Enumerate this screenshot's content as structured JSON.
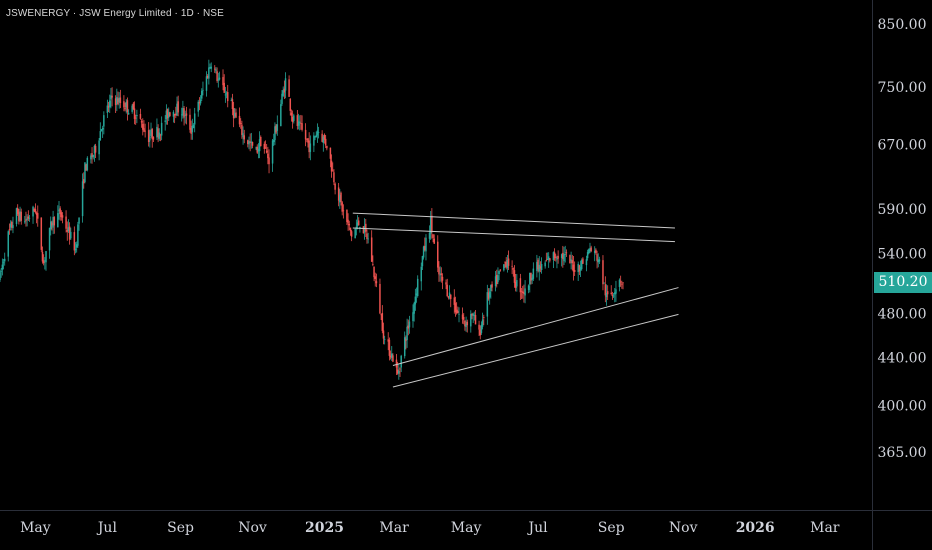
{
  "header": {
    "title": "JSWENERGY · JSW Energy Limited · 1D · NSE"
  },
  "chart_data": {
    "type": "candlestick",
    "symbol": "JSWENERGY",
    "exchange": "NSE",
    "interval": "1D",
    "y_scale": "log",
    "ylim": [
      340,
      870
    ],
    "y_ticks": [
      "850.00",
      "750.00",
      "670.00",
      "590.00",
      "540.00",
      "480.00",
      "440.00",
      "400.00",
      "365.00"
    ],
    "y_tick_values": [
      850,
      750,
      670,
      590,
      540,
      480,
      440,
      400,
      365
    ],
    "x_ticks": [
      "May",
      "Jul",
      "Sep",
      "Nov",
      "2025",
      "Mar",
      "May",
      "Jul",
      "Sep",
      "Nov",
      "2026",
      "Mar"
    ],
    "x_tick_dates": [
      "2024-05-01",
      "2024-07-01",
      "2024-09-01",
      "2024-11-01",
      "2025-01-01",
      "2025-03-01",
      "2025-05-01",
      "2025-07-01",
      "2025-09-01",
      "2025-11-01",
      "2026-01-01",
      "2026-03-01"
    ],
    "xlim": [
      "2024-04-01",
      "2026-04-10"
    ],
    "last_price": 510.2,
    "last_price_label": "510.20",
    "colors": {
      "up": "#26a69a",
      "down": "#ef5350",
      "last_price_badge": "#26a69a",
      "trendline": "#c8c8c8",
      "axis_text": "#d1d4dc"
    },
    "price_path": [
      [
        "2024-04-01",
        515
      ],
      [
        "2024-04-08",
        560
      ],
      [
        "2024-04-15",
        585
      ],
      [
        "2024-04-22",
        575
      ],
      [
        "2024-05-01",
        590
      ],
      [
        "2024-05-08",
        530
      ],
      [
        "2024-05-15",
        575
      ],
      [
        "2024-05-22",
        585
      ],
      [
        "2024-06-04",
        545
      ],
      [
        "2024-06-12",
        640
      ],
      [
        "2024-06-20",
        660
      ],
      [
        "2024-06-28",
        705
      ],
      [
        "2024-07-05",
        735
      ],
      [
        "2024-07-15",
        725
      ],
      [
        "2024-07-25",
        712
      ],
      [
        "2024-08-05",
        680
      ],
      [
        "2024-08-15",
        690
      ],
      [
        "2024-08-22",
        715
      ],
      [
        "2024-09-01",
        720
      ],
      [
        "2024-09-10",
        690
      ],
      [
        "2024-09-20",
        745
      ],
      [
        "2024-09-27",
        790
      ],
      [
        "2024-10-03",
        760
      ],
      [
        "2024-10-10",
        740
      ],
      [
        "2024-10-18",
        705
      ],
      [
        "2024-10-25",
        680
      ],
      [
        "2024-11-04",
        660
      ],
      [
        "2024-11-08",
        675
      ],
      [
        "2024-11-15",
        650
      ],
      [
        "2024-11-22",
        700
      ],
      [
        "2024-11-29",
        760
      ],
      [
        "2024-12-05",
        705
      ],
      [
        "2024-12-12",
        690
      ],
      [
        "2024-12-20",
        665
      ],
      [
        "2024-12-26",
        690
      ],
      [
        "2025-01-03",
        670
      ],
      [
        "2025-01-10",
        620
      ],
      [
        "2025-01-17",
        585
      ],
      [
        "2025-01-24",
        560
      ],
      [
        "2025-01-31",
        575
      ],
      [
        "2025-02-07",
        555
      ],
      [
        "2025-02-14",
        505
      ],
      [
        "2025-02-21",
        455
      ],
      [
        "2025-02-28",
        440
      ],
      [
        "2025-03-04",
        425
      ],
      [
        "2025-03-10",
        455
      ],
      [
        "2025-03-17",
        485
      ],
      [
        "2025-03-24",
        530
      ],
      [
        "2025-04-01",
        575
      ],
      [
        "2025-04-07",
        520
      ],
      [
        "2025-04-14",
        505
      ],
      [
        "2025-04-22",
        485
      ],
      [
        "2025-04-30",
        470
      ],
      [
        "2025-05-06",
        480
      ],
      [
        "2025-05-12",
        460
      ],
      [
        "2025-05-19",
        495
      ],
      [
        "2025-05-26",
        510
      ],
      [
        "2025-06-05",
        535
      ],
      [
        "2025-06-12",
        510
      ],
      [
        "2025-06-20",
        500
      ],
      [
        "2025-06-27",
        525
      ],
      [
        "2025-07-04",
        525
      ],
      [
        "2025-07-11",
        535
      ],
      [
        "2025-07-18",
        540
      ],
      [
        "2025-07-25",
        535
      ],
      [
        "2025-08-01",
        525
      ],
      [
        "2025-08-08",
        530
      ],
      [
        "2025-08-14",
        545
      ],
      [
        "2025-08-21",
        535
      ],
      [
        "2025-08-28",
        495
      ],
      [
        "2025-09-02",
        500
      ],
      [
        "2025-09-08",
        515
      ],
      [
        "2025-09-11",
        510.2
      ]
    ],
    "trendlines": [
      {
        "from": [
          "2025-01-25",
          585
        ],
        "to": [
          "2025-10-25",
          568
        ]
      },
      {
        "from": [
          "2025-01-25",
          568
        ],
        "to": [
          "2025-10-25",
          553
        ]
      },
      {
        "from": [
          "2025-02-28",
          433
        ],
        "to": [
          "2025-10-28",
          505
        ]
      },
      {
        "from": [
          "2025-02-28",
          415
        ],
        "to": [
          "2025-10-28",
          479
        ]
      }
    ]
  }
}
